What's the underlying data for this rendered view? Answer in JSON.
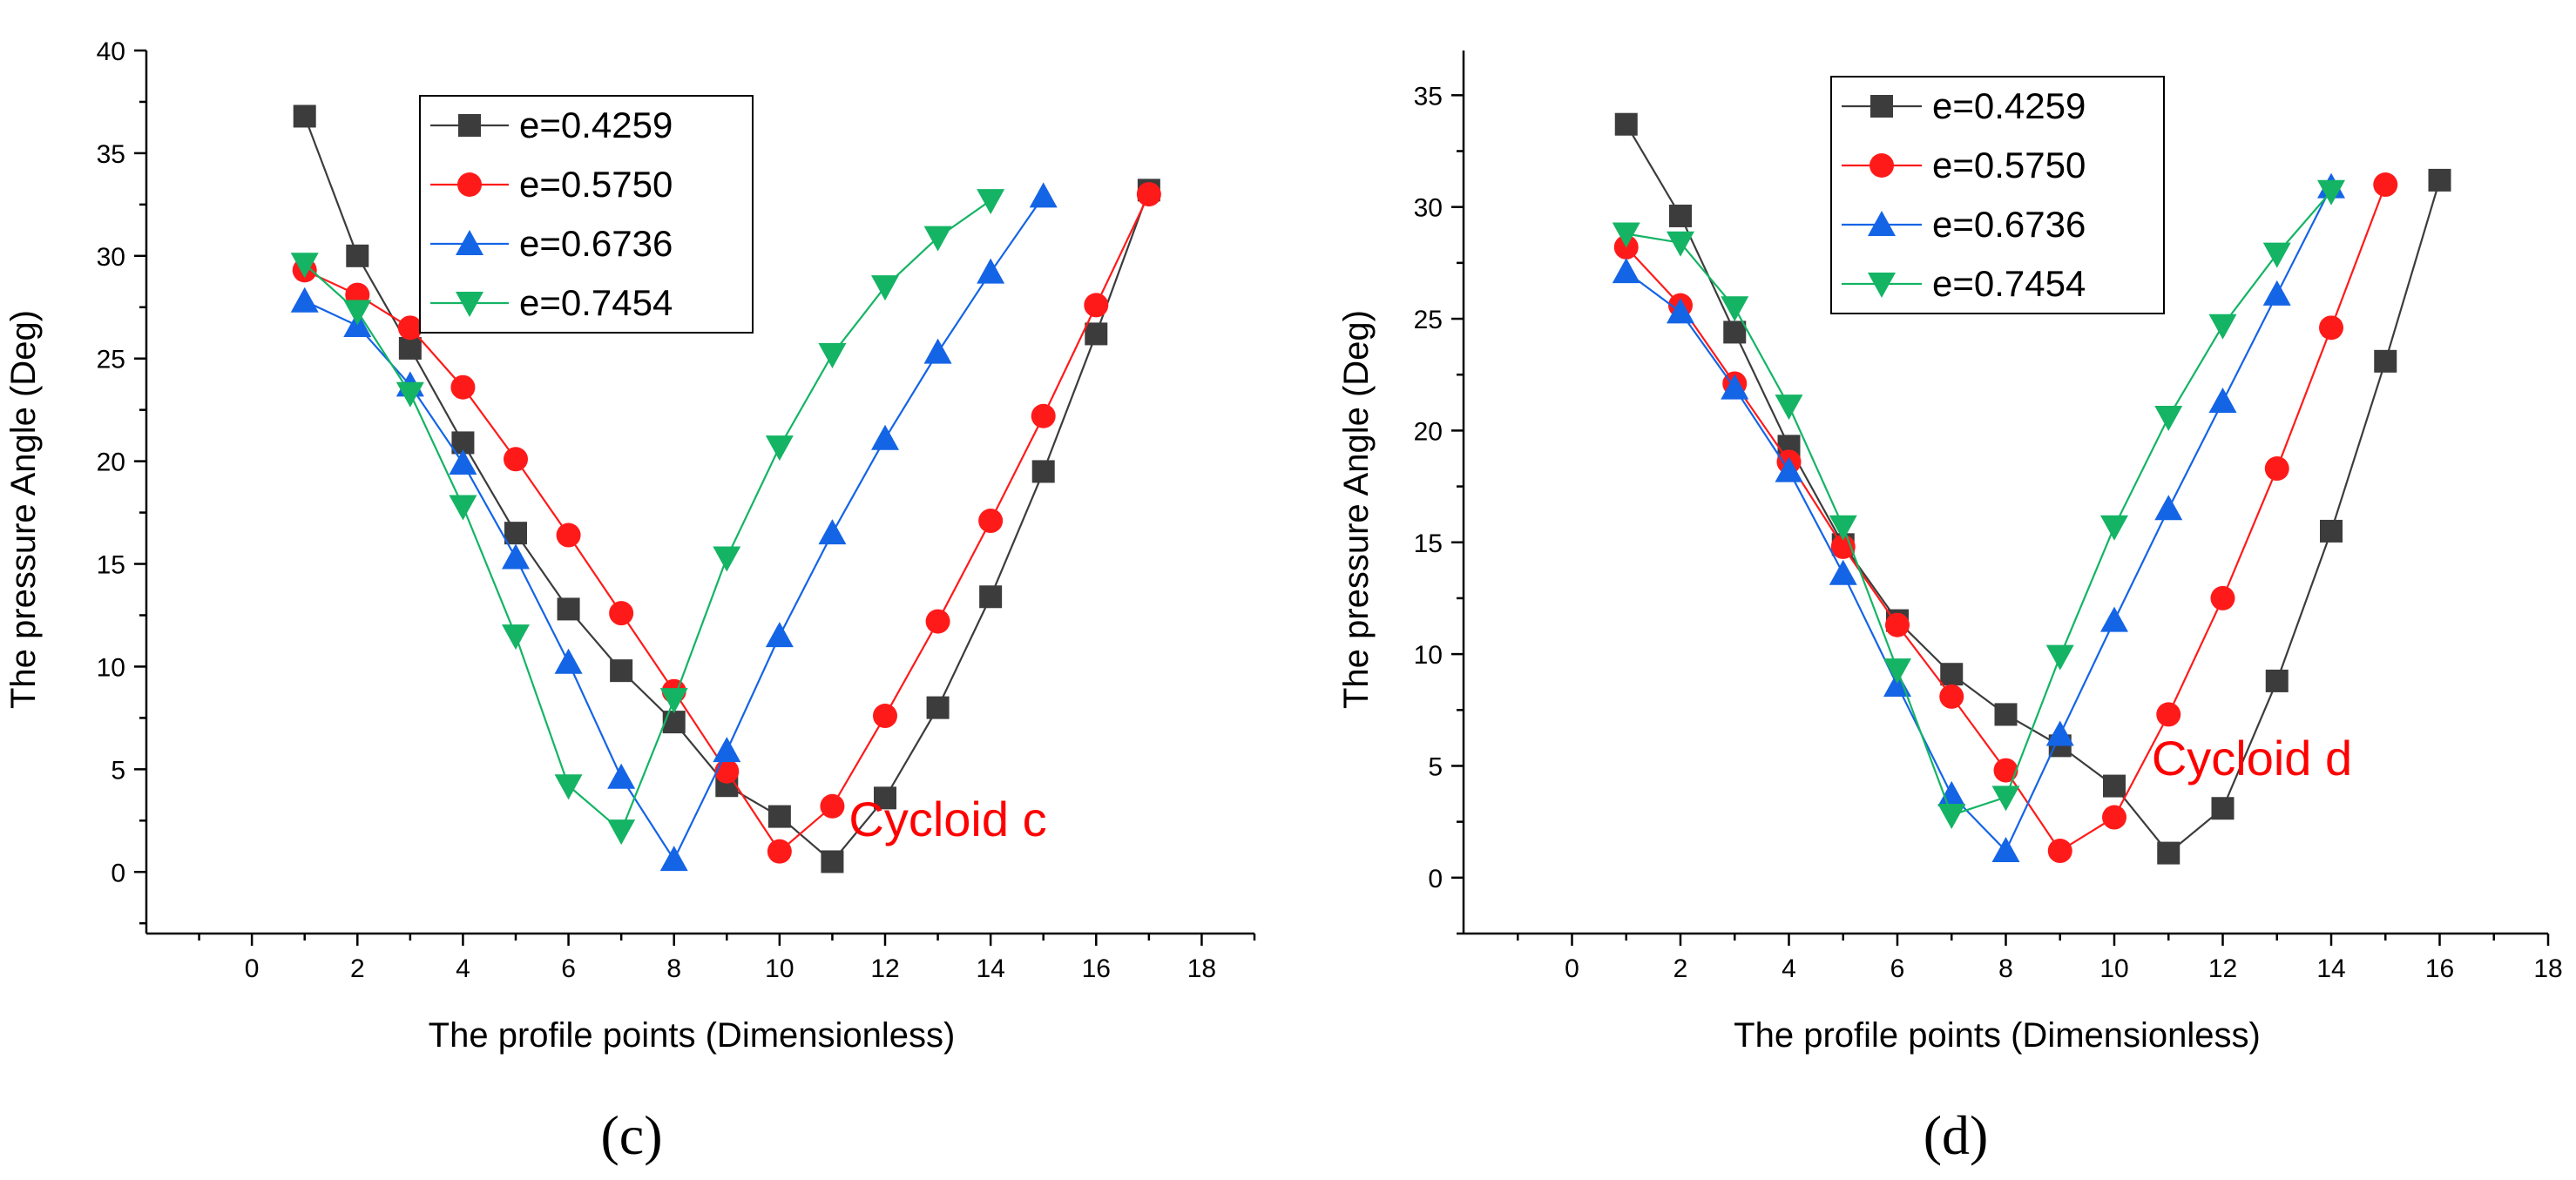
{
  "chart_data": [
    {
      "type": "line",
      "panel_caption": "(c)",
      "annotation": "Cycloid c",
      "annotation_color": "#ff0000",
      "xlabel": "The profile points (Dimensionless)",
      "ylabel": "The pressure Angle (Deg)",
      "xlim": [
        -2,
        19
      ],
      "ylim": [
        -3,
        40
      ],
      "xticks": [
        0,
        2,
        4,
        6,
        8,
        10,
        12,
        14,
        16,
        18
      ],
      "yticks": [
        0,
        5,
        10,
        15,
        20,
        25,
        30,
        35,
        40
      ],
      "legend_location": "top-center",
      "series": [
        {
          "name": "e=0.4259",
          "color": "#3c3c3c",
          "marker": "square",
          "x": [
            1,
            2,
            3,
            4,
            5,
            6,
            7,
            8,
            9,
            10,
            11,
            12,
            13,
            14,
            15,
            16,
            17
          ],
          "y": [
            36.8,
            30.0,
            25.5,
            20.9,
            16.5,
            12.8,
            9.8,
            7.3,
            4.2,
            2.7,
            0.5,
            3.6,
            8.0,
            13.4,
            19.5,
            26.2,
            33.2
          ]
        },
        {
          "name": "e=0.5750",
          "color": "#ff1a1a",
          "marker": "circle",
          "x": [
            1,
            2,
            3,
            4,
            5,
            6,
            7,
            8,
            9,
            10,
            11,
            12,
            13,
            14,
            15,
            16,
            17
          ],
          "y": [
            29.3,
            28.1,
            26.5,
            23.6,
            20.1,
            16.4,
            12.6,
            8.8,
            4.9,
            1.0,
            3.2,
            7.6,
            12.2,
            17.1,
            22.2,
            27.6,
            33.0
          ]
        },
        {
          "name": "e=0.6736",
          "color": "#1464e6",
          "marker": "triangle-up",
          "x": [
            1,
            2,
            3,
            4,
            5,
            6,
            7,
            8,
            9,
            10,
            11,
            12,
            13,
            14,
            15
          ],
          "y": [
            27.8,
            26.6,
            23.7,
            19.9,
            15.3,
            10.2,
            4.6,
            0.6,
            5.9,
            11.5,
            16.5,
            21.1,
            25.3,
            29.2,
            32.9
          ]
        },
        {
          "name": "e=0.7454",
          "color": "#14b464",
          "marker": "triangle-down",
          "x": [
            1,
            2,
            3,
            4,
            5,
            6,
            7,
            8,
            9,
            10,
            11,
            12,
            13,
            14
          ],
          "y": [
            29.6,
            27.3,
            23.3,
            17.8,
            11.5,
            4.2,
            2.0,
            8.4,
            15.3,
            20.7,
            25.2,
            28.5,
            30.9,
            32.7
          ]
        }
      ]
    },
    {
      "type": "line",
      "panel_caption": "(d)",
      "annotation": "Cycloid d",
      "annotation_color": "#ff0000",
      "xlabel": "The profile points (Dimensionless)",
      "ylabel": "The pressure Angle (Deg)",
      "xlim": [
        -2,
        18
      ],
      "ylim": [
        -2.5,
        37
      ],
      "xticks": [
        0,
        2,
        4,
        6,
        8,
        10,
        12,
        14,
        16,
        18
      ],
      "yticks": [
        0,
        5,
        10,
        15,
        20,
        25,
        30,
        35
      ],
      "legend_location": "top-center",
      "series": [
        {
          "name": "e=0.4259",
          "color": "#3c3c3c",
          "marker": "square",
          "x": [
            1,
            2,
            3,
            4,
            5,
            6,
            7,
            8,
            9,
            10,
            11,
            12,
            13,
            14,
            15,
            16
          ],
          "y": [
            33.7,
            29.6,
            24.4,
            19.3,
            14.9,
            11.5,
            9.1,
            7.3,
            5.9,
            4.1,
            1.1,
            3.1,
            8.8,
            15.5,
            23.1,
            31.2
          ]
        },
        {
          "name": "e=0.5750",
          "color": "#ff1a1a",
          "marker": "circle",
          "x": [
            1,
            2,
            3,
            4,
            5,
            6,
            7,
            8,
            9,
            10,
            11,
            12,
            13,
            14,
            15
          ],
          "y": [
            28.2,
            25.6,
            22.1,
            18.6,
            14.8,
            11.3,
            8.1,
            4.8,
            1.2,
            2.7,
            7.3,
            12.5,
            18.3,
            24.6,
            31.0
          ]
        },
        {
          "name": "e=0.6736",
          "color": "#1464e6",
          "marker": "triangle-up",
          "x": [
            1,
            2,
            3,
            4,
            5,
            6,
            7,
            8,
            9,
            10,
            11,
            12,
            13,
            14
          ],
          "y": [
            27.1,
            25.3,
            21.9,
            18.2,
            13.6,
            8.6,
            3.7,
            1.2,
            6.4,
            11.5,
            16.5,
            21.3,
            26.1,
            30.9
          ]
        },
        {
          "name": "e=0.7454",
          "color": "#14b464",
          "marker": "triangle-down",
          "x": [
            1,
            2,
            3,
            4,
            5,
            6,
            7,
            8,
            9,
            10,
            11,
            12,
            13,
            14
          ],
          "y": [
            28.8,
            28.4,
            25.5,
            21.1,
            15.7,
            9.3,
            2.8,
            3.6,
            9.9,
            15.7,
            20.6,
            24.7,
            27.9,
            30.7
          ]
        }
      ]
    }
  ]
}
